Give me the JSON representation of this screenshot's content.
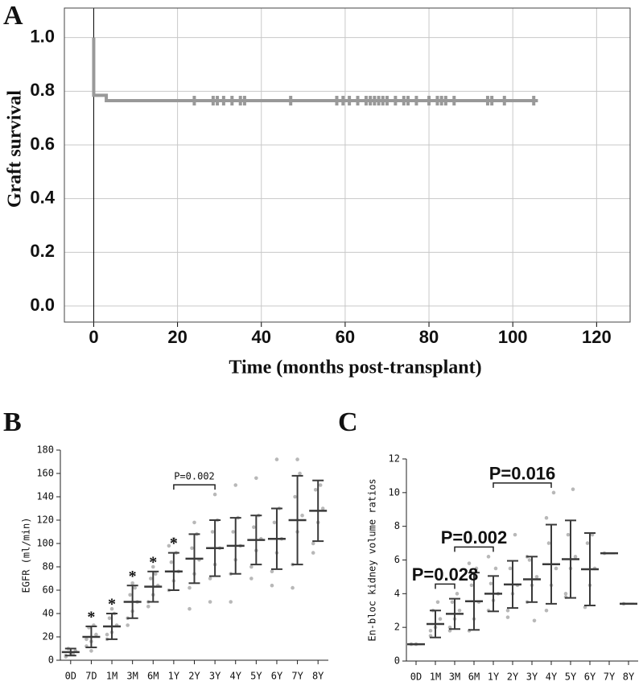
{
  "chart_data": [
    {
      "type": "line",
      "panel": "A",
      "x_label": "Time (months post-transplant)",
      "y_label": "Graft survival",
      "xlim": [
        -7,
        128
      ],
      "ylim": [
        -0.06,
        1.11
      ],
      "xticks": [
        0,
        20,
        40,
        60,
        80,
        100,
        120
      ],
      "yticks": [
        {
          "value": 0,
          "label": "0.0"
        },
        {
          "value": 0.2,
          "label": "0.2"
        },
        {
          "value": 0.4,
          "label": "0.4"
        },
        {
          "value": 0.6,
          "label": "0.6"
        },
        {
          "value": 0.8,
          "label": "0.8"
        },
        {
          "value": 1,
          "label": "1.0"
        }
      ],
      "grid": true,
      "series": [
        {
          "style": "step",
          "color": "#999999",
          "x": [
            0,
            0,
            3,
            3,
            106
          ],
          "values": [
            1,
            0.785,
            0.785,
            0.765,
            0.765
          ]
        },
        {
          "style": "censor",
          "color": "#999999",
          "x": [
            24,
            28.5,
            29.5,
            31,
            33,
            35,
            36,
            47,
            58,
            59.5,
            61,
            63,
            65,
            66,
            67,
            68,
            69,
            70,
            72,
            74,
            75,
            77,
            80,
            82,
            83,
            84,
            86,
            94,
            95,
            98,
            105
          ],
          "values": [
            0.765,
            0.765,
            0.765,
            0.765,
            0.765,
            0.765,
            0.765,
            0.765,
            0.765,
            0.765,
            0.765,
            0.765,
            0.765,
            0.765,
            0.765,
            0.765,
            0.765,
            0.765,
            0.765,
            0.765,
            0.765,
            0.765,
            0.765,
            0.765,
            0.765,
            0.765,
            0.765,
            0.765,
            0.765,
            0.765,
            0.765
          ]
        }
      ]
    },
    {
      "type": "errorbar",
      "panel": "B",
      "y_label": "EGFR (ml/min)",
      "categories": [
        "0D",
        "7D",
        "1M",
        "3M",
        "6M",
        "1Y",
        "2Y",
        "3Y",
        "4Y",
        "5Y",
        "6Y",
        "7Y",
        "8Y"
      ],
      "ylim": [
        0,
        180
      ],
      "yticks": [
        0,
        20,
        40,
        60,
        80,
        100,
        120,
        140,
        160,
        180
      ],
      "series": [
        {
          "color": "#3a3a3a",
          "point_color": "#b8b8b8",
          "values": [
            7,
            20,
            29,
            50,
            63,
            76,
            87,
            96,
            98,
            103,
            104,
            120,
            128
          ],
          "errors": [
            3,
            9,
            11,
            14,
            13,
            16,
            21,
            24,
            24,
            21,
            26,
            38,
            26
          ],
          "points": [
            [
              4,
              6,
              8,
              10,
              5,
              3
            ],
            [
              12,
              16,
              22,
              28,
              30,
              18,
              8
            ],
            [
              18,
              24,
              30,
              36,
              40,
              22,
              44
            ],
            [
              36,
              42,
              50,
              56,
              62,
              30,
              66
            ],
            [
              50,
              56,
              64,
              70,
              74,
              46,
              80
            ],
            [
              60,
              68,
              76,
              84,
              92,
              98,
              104
            ],
            [
              62,
              74,
              86,
              96,
              108,
              44,
              118
            ],
            [
              70,
              82,
              96,
              110,
              120,
              50,
              142
            ],
            [
              74,
              86,
              98,
              110,
              122,
              50,
              150
            ],
            [
              80,
              94,
              104,
              114,
              124,
              70,
              156
            ],
            [
              76,
              92,
              104,
              118,
              130,
              64,
              172
            ],
            [
              82,
              110,
              124,
              140,
              160,
              62,
              172
            ],
            [
              100,
              118,
              130,
              146,
              150,
              92
            ]
          ]
        }
      ],
      "marks": [
        null,
        "*",
        "*",
        "*",
        "*",
        "*",
        null,
        null,
        null,
        null,
        null,
        null,
        null
      ],
      "comparisons": [
        {
          "label": "P=0.002",
          "from": "1Y",
          "to": "3Y"
        }
      ]
    },
    {
      "type": "errorbar",
      "panel": "C",
      "y_label": "En-bloc kidney volume ratios",
      "categories": [
        "0D",
        "1M",
        "3M",
        "6M",
        "1Y",
        "2Y",
        "3Y",
        "4Y",
        "5Y",
        "6Y",
        "7Y",
        "8Y"
      ],
      "ylim": [
        0,
        12
      ],
      "yticks": [
        0,
        2,
        4,
        6,
        8,
        10,
        12
      ],
      "series": [
        {
          "color": "#3a3a3a",
          "point_color": "#b8b8b8",
          "values": [
            1,
            2.2,
            2.8,
            3.55,
            4,
            4.55,
            4.85,
            5.75,
            6.05,
            5.45,
            6.4,
            3.4
          ],
          "errors": [
            0,
            0.8,
            0.9,
            1.7,
            1.05,
            1.4,
            1.35,
            2.35,
            2.3,
            2.15,
            0,
            0
          ],
          "points": [
            [
              1,
              1
            ],
            [
              1.5,
              2,
              2.5,
              3,
              3.5,
              1.8
            ],
            [
              2,
              2.5,
              3,
              3.5,
              4,
              1.8
            ],
            [
              1.8,
              2.5,
              3.5,
              4.5,
              5.5,
              5.8
            ],
            [
              3,
              3.6,
              4,
              4.6,
              5.5,
              6.2
            ],
            [
              3,
              4,
              4.5,
              5.5,
              7.5,
              2.6
            ],
            [
              3.5,
              4.5,
              5,
              6,
              2.4,
              6.2
            ],
            [
              3,
              4.5,
              5.5,
              7,
              10,
              8.5
            ],
            [
              4,
              5.5,
              6.2,
              7.5,
              10.2,
              3.8
            ],
            [
              3.2,
              4.5,
              5.5,
              7,
              7.5
            ],
            [
              6.4
            ],
            [
              3.4
            ]
          ]
        }
      ],
      "comparisons": [
        {
          "label": "P=0.028",
          "from": "1M",
          "to": "3M"
        },
        {
          "label": "P=0.002",
          "from": "3M",
          "to": "1Y"
        },
        {
          "label": "P=0.016",
          "from": "1Y",
          "to": "4Y"
        }
      ]
    }
  ]
}
